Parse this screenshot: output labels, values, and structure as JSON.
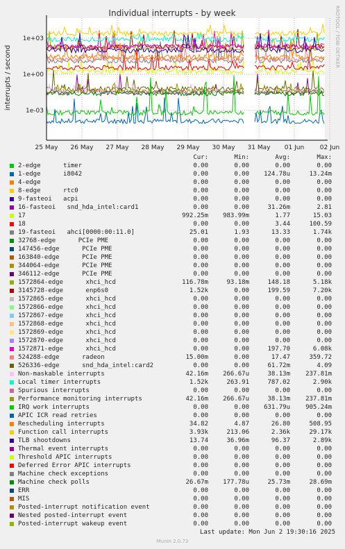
{
  "chart_data": {
    "type": "line",
    "title": "Individual interrupts - by week",
    "ylabel": "interrupts / second",
    "yscale": "log",
    "yticks": [
      "1e+03",
      "1e+00",
      "1e-03"
    ],
    "xticks": [
      "25 May",
      "26 May",
      "27 May",
      "28 May",
      "29 May",
      "30 May",
      "31 May",
      "01 Jun",
      "02 Jun"
    ],
    "side_label": "RRDTOOL / TOBI OETIKER",
    "grid": true,
    "columns": [
      "Cur:",
      "Min:",
      "Avg:",
      "Max:"
    ],
    "series": [
      {
        "name": "2-edge      timer",
        "color": "#00cc00",
        "cur": "0.00",
        "min": "0.00",
        "avg": "0.00",
        "max": "0.00"
      },
      {
        "name": "1-edge      i8042",
        "color": "#0066b3",
        "cur": "0.00",
        "min": "0.00",
        "avg": "124.78u",
        "max": "13.24m"
      },
      {
        "name": "4-edge",
        "color": "#ff8000",
        "cur": "0.00",
        "min": "0.00",
        "avg": "0.00",
        "max": "0.00"
      },
      {
        "name": "8-edge      rtc0",
        "color": "#ffcc00",
        "cur": "0.00",
        "min": "0.00",
        "avg": "0.00",
        "max": "0.00"
      },
      {
        "name": "9-fasteoi   acpi",
        "color": "#330099",
        "cur": "0.00",
        "min": "0.00",
        "avg": "0.00",
        "max": "0.00"
      },
      {
        "name": "16-fasteoi   snd_hda_intel:card1",
        "color": "#990099",
        "cur": "0.00",
        "min": "0.00",
        "avg": "31.26m",
        "max": "2.81"
      },
      {
        "name": "17",
        "color": "#ccff00",
        "cur": "992.25m",
        "min": "983.99m",
        "avg": "1.77",
        "max": "15.03"
      },
      {
        "name": "18",
        "color": "#ff0000",
        "cur": "0.00",
        "min": "0.00",
        "avg": "3.44",
        "max": "100.59"
      },
      {
        "name": "19-fasteoi   ahci[0000:00:11.0]",
        "color": "#808080",
        "cur": "25.01",
        "min": "1.93",
        "avg": "13.33",
        "max": "1.74k"
      },
      {
        "name": "32768-edge      PCIe PME",
        "color": "#008f00",
        "cur": "0.00",
        "min": "0.00",
        "avg": "0.00",
        "max": "0.00"
      },
      {
        "name": "147456-edge      PCIe PME",
        "color": "#00487d",
        "cur": "0.00",
        "min": "0.00",
        "avg": "0.00",
        "max": "0.00"
      },
      {
        "name": "163840-edge      PCIe PME",
        "color": "#b35a00",
        "cur": "0.00",
        "min": "0.00",
        "avg": "0.00",
        "max": "0.00"
      },
      {
        "name": "344064-edge      PCIe PME",
        "color": "#b38f00",
        "cur": "0.00",
        "min": "0.00",
        "avg": "0.00",
        "max": "0.00"
      },
      {
        "name": "346112-edge      PCIe PME",
        "color": "#6b006b",
        "cur": "0.00",
        "min": "0.00",
        "avg": "0.00",
        "max": "0.00"
      },
      {
        "name": "1572864-edge      xhci_hcd",
        "color": "#8fb300",
        "cur": "116.78m",
        "min": "93.18m",
        "avg": "148.18",
        "max": "5.18k"
      },
      {
        "name": "3145728-edge      enp6s0",
        "color": "#b30000",
        "cur": "1.52k",
        "min": "0.00",
        "avg": "199.59",
        "max": "7.20k"
      },
      {
        "name": "1572865-edge      xhci_hcd",
        "color": "#bebebe",
        "cur": "0.00",
        "min": "0.00",
        "avg": "0.00",
        "max": "0.00"
      },
      {
        "name": "1572866-edge      xhci_hcd",
        "color": "#80ff80",
        "cur": "0.00",
        "min": "0.00",
        "avg": "0.00",
        "max": "0.00"
      },
      {
        "name": "1572867-edge      xhci_hcd",
        "color": "#80c9ff",
        "cur": "0.00",
        "min": "0.00",
        "avg": "0.00",
        "max": "0.00"
      },
      {
        "name": "1572868-edge      xhci_hcd",
        "color": "#ffc080",
        "cur": "0.00",
        "min": "0.00",
        "avg": "0.00",
        "max": "0.00"
      },
      {
        "name": "1572869-edge      xhci_hcd",
        "color": "#ffe680",
        "cur": "0.00",
        "min": "0.00",
        "avg": "0.00",
        "max": "0.00"
      },
      {
        "name": "1572870-edge      xhci_hcd",
        "color": "#aa80ff",
        "cur": "0.00",
        "min": "0.00",
        "avg": "0.00",
        "max": "0.00"
      },
      {
        "name": "1572871-edge      xhci_hcd",
        "color": "#ee00cc",
        "cur": "0.00",
        "min": "0.00",
        "avg": "197.70",
        "max": "6.08k"
      },
      {
        "name": "524288-edge      radeon",
        "color": "#ff8080",
        "cur": "15.00m",
        "min": "0.00",
        "avg": "17.47",
        "max": "359.72"
      },
      {
        "name": "526336-edge      snd_hda_intel:card2",
        "color": "#666600",
        "cur": "0.00",
        "min": "0.00",
        "avg": "61.72m",
        "max": "4.09"
      },
      {
        "name": "Non-maskable interrupts",
        "color": "#ffbfff",
        "cur": "42.16m",
        "min": "266.67u",
        "avg": "38.13m",
        "max": "237.81m"
      },
      {
        "name": "Local timer interrupts",
        "color": "#00ffcc",
        "cur": "1.52k",
        "min": "263.91",
        "avg": "787.02",
        "max": "2.90k"
      },
      {
        "name": "Spurious interrupts",
        "color": "#cc6699",
        "cur": "0.00",
        "min": "0.00",
        "avg": "0.00",
        "max": "0.00"
      },
      {
        "name": "Performance monitoring interrupts",
        "color": "#999900",
        "cur": "42.16m",
        "min": "266.67u",
        "avg": "38.13m",
        "max": "237.81m"
      },
      {
        "name": "IRQ work interrupts",
        "color": "#00cc00",
        "cur": "0.00",
        "min": "0.00",
        "avg": "631.79u",
        "max": "905.24m"
      },
      {
        "name": "APIC ICR read retries",
        "color": "#0066b3",
        "cur": "0.00",
        "min": "0.00",
        "avg": "0.00",
        "max": "0.00"
      },
      {
        "name": "Rescheduling interrupts",
        "color": "#ff8000",
        "cur": "34.82",
        "min": "4.87",
        "avg": "26.80",
        "max": "508.95"
      },
      {
        "name": "Function call interrupts",
        "color": "#ffcc00",
        "cur": "3.93k",
        "min": "213.06",
        "avg": "2.36k",
        "max": "29.17k"
      },
      {
        "name": "TLB shootdowns",
        "color": "#330099",
        "cur": "13.74",
        "min": "36.96m",
        "avg": "96.37",
        "max": "2.89k"
      },
      {
        "name": "Thermal event interrupts",
        "color": "#990099",
        "cur": "0.00",
        "min": "0.00",
        "avg": "0.00",
        "max": "0.00"
      },
      {
        "name": "Threshold APIC interrupts",
        "color": "#ccff00",
        "cur": "0.00",
        "min": "0.00",
        "avg": "0.00",
        "max": "0.00"
      },
      {
        "name": "Deferred Error APIC interrupts",
        "color": "#ff0000",
        "cur": "0.00",
        "min": "0.00",
        "avg": "0.00",
        "max": "0.00"
      },
      {
        "name": "Machine check exceptions",
        "color": "#808080",
        "cur": "0.00",
        "min": "0.00",
        "avg": "0.00",
        "max": "0.00"
      },
      {
        "name": "Machine check polls",
        "color": "#008f00",
        "cur": "26.67m",
        "min": "177.78u",
        "avg": "25.73m",
        "max": "28.69m"
      },
      {
        "name": "ERR",
        "color": "#00487d",
        "cur": "0.00",
        "min": "0.00",
        "avg": "0.00",
        "max": "0.00"
      },
      {
        "name": "MIS",
        "color": "#b35a00",
        "cur": "0.00",
        "min": "0.00",
        "avg": "0.00",
        "max": "0.00"
      },
      {
        "name": "Posted-interrupt notification event",
        "color": "#b38f00",
        "cur": "0.00",
        "min": "0.00",
        "avg": "0.00",
        "max": "0.00"
      },
      {
        "name": "Nested posted-interrupt event",
        "color": "#6b006b",
        "cur": "0.00",
        "min": "0.00",
        "avg": "0.00",
        "max": "0.00"
      },
      {
        "name": "Posted-interrupt wakeup event",
        "color": "#8fb300",
        "cur": "0.00",
        "min": "0.00",
        "avg": "0.00",
        "max": "0.00"
      }
    ]
  },
  "last_update": "Last update: Mon Jun  2 19:30:16 2025",
  "footer": "Munin 2.0.73"
}
